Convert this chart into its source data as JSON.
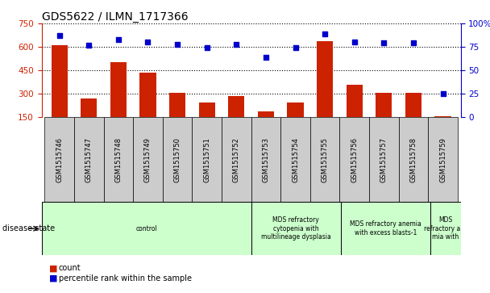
{
  "title": "GDS5622 / ILMN_1717366",
  "samples": [
    "GSM1515746",
    "GSM1515747",
    "GSM1515748",
    "GSM1515749",
    "GSM1515750",
    "GSM1515751",
    "GSM1515752",
    "GSM1515753",
    "GSM1515754",
    "GSM1515755",
    "GSM1515756",
    "GSM1515757",
    "GSM1515758",
    "GSM1515759"
  ],
  "counts": [
    610,
    270,
    500,
    435,
    308,
    243,
    285,
    185,
    245,
    638,
    358,
    308,
    308,
    155
  ],
  "percentiles": [
    87,
    77,
    83,
    80,
    78,
    74,
    78,
    64,
    74,
    89,
    80,
    79,
    79,
    25
  ],
  "bar_color": "#cc2200",
  "dot_color": "#0000cc",
  "ylim_left": [
    150,
    750
  ],
  "ylim_right": [
    0,
    100
  ],
  "yticks_left": [
    150,
    300,
    450,
    600,
    750
  ],
  "yticks_right": [
    0,
    25,
    50,
    75,
    100
  ],
  "disease_groups": [
    {
      "label": "control",
      "start": 0,
      "end": 7,
      "color": "#ccffcc"
    },
    {
      "label": "MDS refractory\ncytopenia with\nmultilineage dysplasia",
      "start": 7,
      "end": 10,
      "color": "#ccffcc"
    },
    {
      "label": "MDS refractory anemia\nwith excess blasts-1",
      "start": 10,
      "end": 13,
      "color": "#ccffcc"
    },
    {
      "label": "MDS\nrefractory ane\nmia with",
      "start": 13,
      "end": 14,
      "color": "#ccffcc"
    }
  ],
  "disease_state_label": "disease state",
  "legend_count": "count",
  "legend_percentile": "percentile rank within the sample",
  "background_color": "#ffffff",
  "tick_bg_color": "#cccccc",
  "grid_color": "#000000"
}
